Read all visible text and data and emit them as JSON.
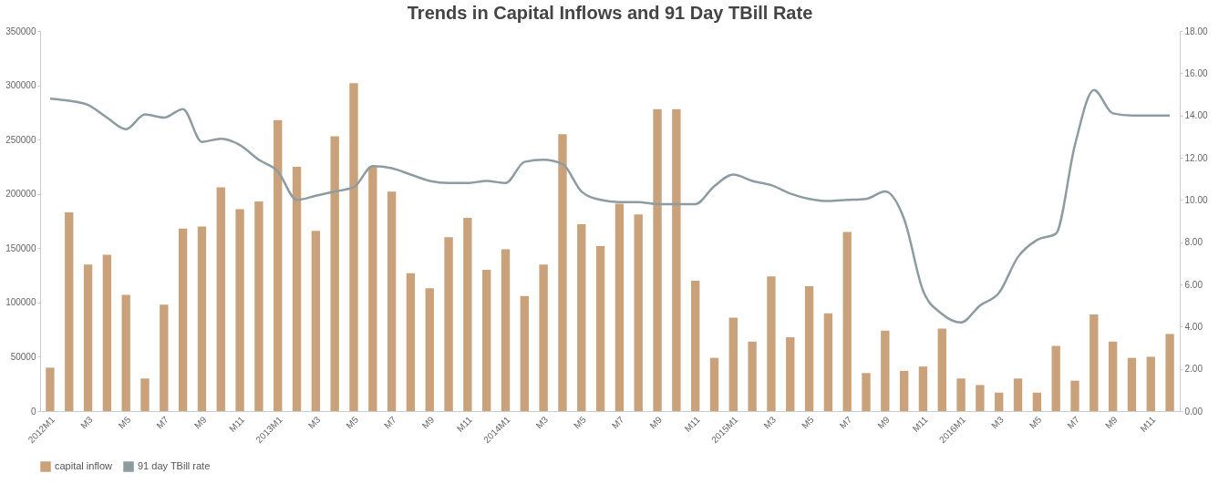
{
  "chart_data": {
    "type": "bar",
    "title": "Trends in Capital Inflows and 91 Day TBill Rate",
    "categories": [
      "2012M1",
      null,
      "M3",
      null,
      "M5",
      null,
      "M7",
      null,
      "M9",
      null,
      "M11",
      null,
      "2013M1",
      null,
      "M3",
      null,
      "M5",
      null,
      "M7",
      null,
      "M9",
      null,
      "M11",
      null,
      "2014M1",
      null,
      "M3",
      null,
      "M5",
      null,
      "M7",
      null,
      "M9",
      null,
      "M11",
      null,
      "2015M1",
      null,
      "M3",
      null,
      "M5",
      null,
      "M7",
      null,
      "M9",
      null,
      "M11",
      null,
      "2016M1",
      null,
      "M3",
      null,
      "M5",
      null,
      "M7",
      null,
      "M9",
      null,
      "M11",
      null
    ],
    "series": [
      {
        "name": "capital inflow",
        "color": "#c9a27c",
        "values": [
          40000,
          183000,
          135000,
          144000,
          107000,
          30000,
          98000,
          168000,
          170000,
          206000,
          186000,
          193000,
          268000,
          225000,
          166000,
          253000,
          302000,
          225000,
          202000,
          127000,
          113000,
          160000,
          178000,
          130000,
          149000,
          106000,
          135000,
          255000,
          172000,
          152000,
          191000,
          181000,
          278000,
          278000,
          120000,
          49000,
          86000,
          64000,
          124000,
          68000,
          115000,
          90000,
          165000,
          35000,
          74000,
          37000,
          41000,
          76000,
          30000,
          24000,
          17000,
          30000,
          17000,
          60000,
          28000,
          89000,
          64000,
          49000,
          50000,
          71000
        ]
      },
      {
        "name": "91 day TBill rate",
        "type": "line",
        "axis": "y2",
        "color": "#8e9ca2",
        "values": [
          14.8,
          14.7,
          14.5,
          13.9,
          13.35,
          14.05,
          13.9,
          14.3,
          12.75,
          12.9,
          12.6,
          11.9,
          11.35,
          10.0,
          10.2,
          10.4,
          10.6,
          11.6,
          11.5,
          11.2,
          10.9,
          10.8,
          10.8,
          10.9,
          10.8,
          11.8,
          11.9,
          11.7,
          10.4,
          10.0,
          9.9,
          9.9,
          9.8,
          9.8,
          9.8,
          10.65,
          11.2,
          10.9,
          10.7,
          10.3,
          10.05,
          9.95,
          10.0,
          10.05,
          10.4,
          9.1,
          5.7,
          4.6,
          4.2,
          5.0,
          5.6,
          7.3,
          8.1,
          8.4,
          12.6,
          15.2,
          14.1,
          14.0,
          14.0,
          14.0
        ]
      }
    ],
    "ylim": [
      0,
      350000
    ],
    "yticks": [
      0,
      50000,
      100000,
      150000,
      200000,
      250000,
      300000,
      350000
    ],
    "y2lim": [
      0,
      18
    ],
    "y2ticks": [
      {
        "value": 0,
        "label": "0.00"
      },
      {
        "value": 2,
        "label": "2.00"
      },
      {
        "value": 4,
        "label": "4.00"
      },
      {
        "value": 6,
        "label": "6.00"
      },
      {
        "value": 8,
        "label": "8.00"
      },
      {
        "value": 10,
        "label": "10.00"
      },
      {
        "value": 12,
        "label": "12.00"
      },
      {
        "value": 14,
        "label": "14.00"
      },
      {
        "value": 16,
        "label": "16.00"
      },
      {
        "value": 18,
        "label": "18.00"
      }
    ],
    "grid": false,
    "legend": "bottom"
  }
}
